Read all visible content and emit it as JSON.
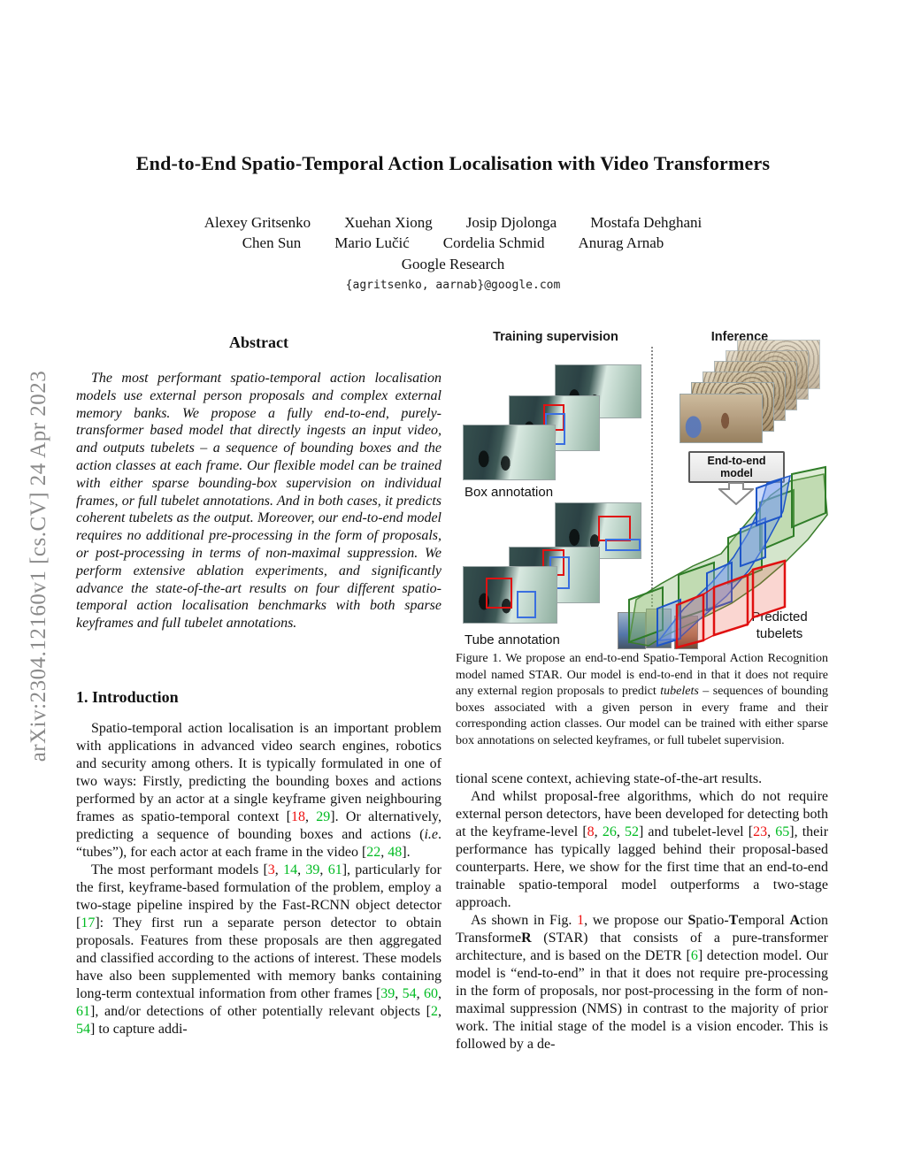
{
  "colors": {
    "citation_green": "#00bb22",
    "link_red": "#ee1111",
    "arxiv_gray": "#8a8a8a",
    "box_red": "#e01212",
    "box_blue": "#3a6fe0"
  },
  "arxiv_stamp": "arXiv:2304.12160v1  [cs.CV]  24 Apr 2023",
  "title": "End-to-End Spatio-Temporal Action Localisation with Video Transformers",
  "authors": {
    "row1": [
      "Alexey Gritsenko",
      "Xuehan Xiong",
      "Josip Djolonga",
      "Mostafa Dehghani"
    ],
    "row2": [
      "Chen Sun",
      "Mario Lučić",
      "Cordelia Schmid",
      "Anurag Arnab"
    ],
    "affiliation": "Google Research",
    "email": "{agritsenko, aarnab}@google.com"
  },
  "abstract": {
    "heading": "Abstract",
    "body": "The most performant spatio-temporal action localisation models use external person proposals and complex external memory banks. We propose a fully end-to-end, purely-transformer based model that directly ingests an input video, and outputs tubelets – a sequence of bounding boxes and the action classes at each frame. Our flexible model can be trained with either sparse bounding-box supervision on individual frames, or full tubelet annotations. And in both cases, it predicts coherent tubelets as the output. Moreover, our end-to-end model requires no additional pre-processing in the form of proposals, or post-processing in terms of non-maximal suppression. We perform extensive ablation experiments, and significantly advance the state-of-the-art results on four different spatio-temporal action localisation benchmarks with both sparse keyframes and full tubelet annotations."
  },
  "intro": {
    "heading": "1. Introduction",
    "para1": [
      {
        "t": "Spatio-temporal action localisation is an important problem with applications in advanced video search engines, robotics and security among others.  It is typically formulated in one of two ways:  Firstly, predicting the bounding boxes and actions performed by an actor at a single keyframe given neighbouring frames as spatio-temporal context ["
      },
      {
        "t": "18",
        "s": "r"
      },
      {
        "t": ", "
      },
      {
        "t": "29",
        "s": "g"
      },
      {
        "t": "].  Or alternatively, predicting a sequence of bounding boxes and actions ("
      },
      {
        "t": "i.e",
        "s": "i"
      },
      {
        "t": ". “tubes”), for each actor at each frame in the video ["
      },
      {
        "t": "22",
        "s": "g"
      },
      {
        "t": ", "
      },
      {
        "t": "48",
        "s": "g"
      },
      {
        "t": "]."
      }
    ],
    "para2": [
      {
        "t": "The most performant models ["
      },
      {
        "t": "3",
        "s": "r"
      },
      {
        "t": ", "
      },
      {
        "t": "14",
        "s": "g"
      },
      {
        "t": ", "
      },
      {
        "t": "39",
        "s": "g"
      },
      {
        "t": ", "
      },
      {
        "t": "61",
        "s": "g"
      },
      {
        "t": "], particularly for the first, keyframe-based formulation of the problem, employ a two-stage pipeline inspired by the Fast-RCNN object detector ["
      },
      {
        "t": "17",
        "s": "g"
      },
      {
        "t": "]:  They first run a separate person detector to obtain proposals.  Features from these proposals are then aggregated and classified according to the actions of interest.  These models have also been supplemented with memory banks containing long-term contextual information from other frames ["
      },
      {
        "t": "39",
        "s": "g"
      },
      {
        "t": ", "
      },
      {
        "t": "54",
        "s": "g"
      },
      {
        "t": ", "
      },
      {
        "t": "60",
        "s": "g"
      },
      {
        "t": ", "
      },
      {
        "t": "61",
        "s": "g"
      },
      {
        "t": "], and/or detections of other potentially relevant objects ["
      },
      {
        "t": "2",
        "s": "g"
      },
      {
        "t": ", "
      },
      {
        "t": "54",
        "s": "g"
      },
      {
        "t": "] to capture addi-"
      }
    ]
  },
  "figure": {
    "left_label": "Training supervision",
    "right_label": "Inference",
    "box_annotation_label": "Box annotation",
    "tube_annotation_label": "Tube annotation",
    "model_box_line1": "End-to-end",
    "model_box_line2": "model",
    "predicted_label": "Predicted tubelets",
    "caption": [
      {
        "t": "Figure 1.    We propose an end-to-end Spatio-Temporal Action Recognition model named STAR. Our model is end-to-end in that it does not require any external region proposals to predict "
      },
      {
        "t": "tubelets",
        "s": "i"
      },
      {
        "t": " – sequences of bounding boxes associated with a given person in every frame and their corresponding action classes. Our model can be trained with either sparse box annotations on selected keyframes, or full tubelet supervision."
      }
    ]
  },
  "right_col": {
    "para0": "tional scene context, achieving state-of-the-art results.",
    "para1": [
      {
        "t": "And whilst proposal-free algorithms, which do not require external person detectors, have been developed for detecting both at the keyframe-level ["
      },
      {
        "t": "8",
        "s": "r"
      },
      {
        "t": ", "
      },
      {
        "t": "26",
        "s": "g"
      },
      {
        "t": ", "
      },
      {
        "t": "52",
        "s": "g"
      },
      {
        "t": "] and tubelet-level ["
      },
      {
        "t": "23",
        "s": "r"
      },
      {
        "t": ", "
      },
      {
        "t": "65",
        "s": "g"
      },
      {
        "t": "], their performance has typically lagged behind their proposal-based counterparts.  Here, we show for the first time that an end-to-end trainable spatio-temporal model outperforms a two-stage approach."
      }
    ],
    "para2": [
      {
        "t": "As shown in Fig. "
      },
      {
        "t": "1",
        "s": "r"
      },
      {
        "t": ", we propose our "
      },
      {
        "t": "S",
        "s": "b"
      },
      {
        "t": "patio-"
      },
      {
        "t": "T",
        "s": "b"
      },
      {
        "t": "emporal "
      },
      {
        "t": "A",
        "s": "b"
      },
      {
        "t": "ction Transforme"
      },
      {
        "t": "R",
        "s": "b"
      },
      {
        "t": " (STAR) that consists of a pure-transformer architecture, and is based on the DETR ["
      },
      {
        "t": "6",
        "s": "g"
      },
      {
        "t": "] detection model. Our model is “end-to-end” in that it does not require pre-processing in the form of proposals, nor post-processing in the form of non-maximal suppression (NMS) in contrast to the majority of prior work.  The initial stage of the model is a vision encoder.  This is followed by a de-"
      }
    ]
  }
}
